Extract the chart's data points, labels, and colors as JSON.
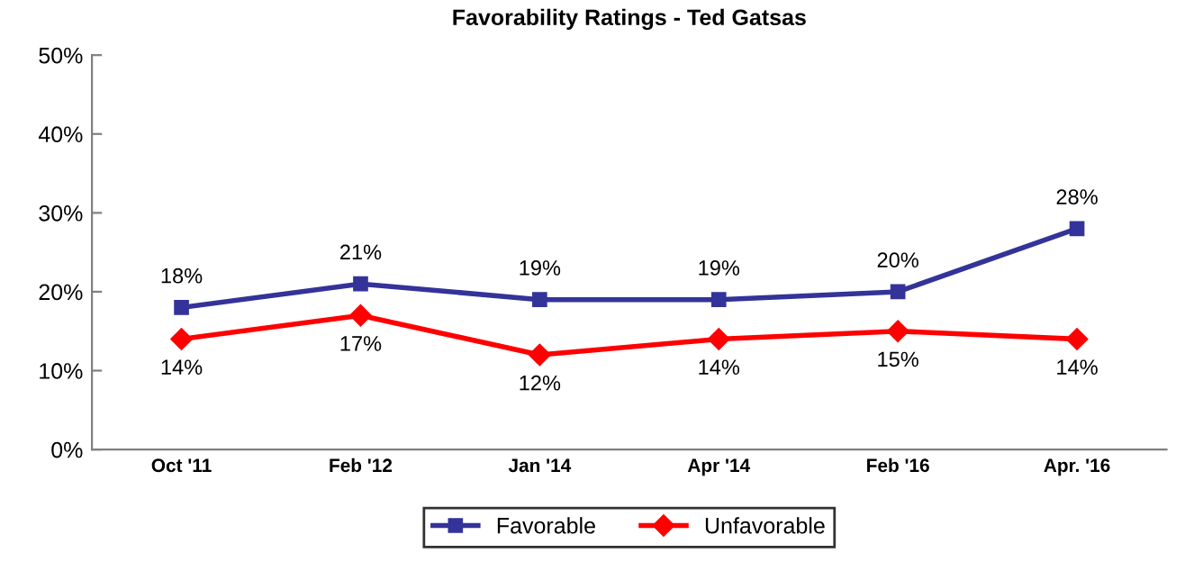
{
  "chart_data": {
    "type": "line",
    "title": "Favorability Ratings - Ted Gatsas",
    "categories": [
      "Oct '11",
      "Feb '12",
      "Jan '14",
      "Apr '14",
      "Feb '16",
      "Apr. '16"
    ],
    "series": [
      {
        "name": "Favorable",
        "color": "#333399",
        "marker": "square",
        "values": [
          18,
          21,
          19,
          19,
          20,
          28
        ],
        "value_labels": [
          "18%",
          "21%",
          "19%",
          "19%",
          "20%",
          "28%"
        ]
      },
      {
        "name": "Unfavorable",
        "color": "#ff0000",
        "marker": "diamond",
        "values": [
          14,
          17,
          12,
          14,
          15,
          14
        ],
        "value_labels": [
          "14%",
          "17%",
          "12%",
          "14%",
          "15%",
          "14%"
        ]
      }
    ],
    "ylim": [
      0,
      50
    ],
    "yticks": [
      {
        "value": 0,
        "label": "0%"
      },
      {
        "value": 10,
        "label": "10%"
      },
      {
        "value": 20,
        "label": "20%"
      },
      {
        "value": 30,
        "label": "30%"
      },
      {
        "value": 40,
        "label": "40%"
      },
      {
        "value": 50,
        "label": "50%"
      }
    ],
    "grid": false,
    "legend": "bottom",
    "line_style": "solid"
  }
}
